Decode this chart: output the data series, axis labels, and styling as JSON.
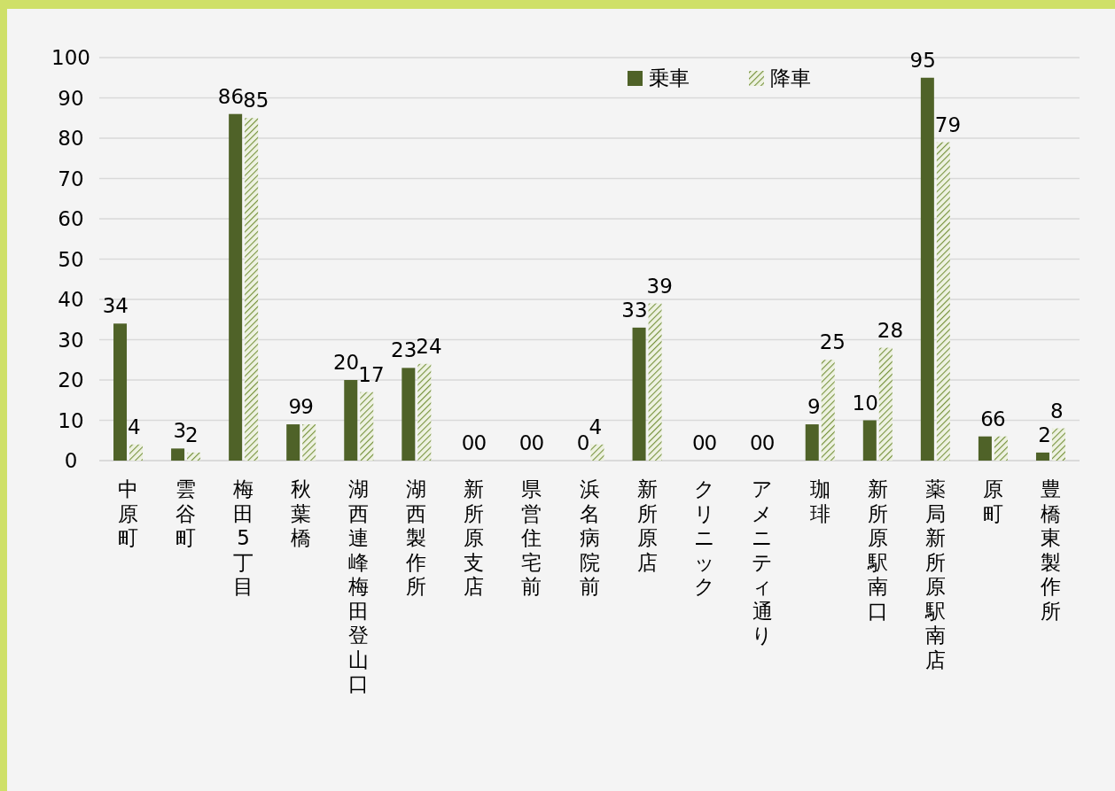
{
  "chart_data": {
    "type": "bar",
    "categories": [
      "中原町",
      "雲谷町",
      "梅田5丁目",
      "秋葉橋",
      "湖西連峰梅田登山口",
      "湖西製作所",
      "新所原支店",
      "県営住宅前",
      "浜名病院前",
      "新所原店",
      "クリニック",
      "アメニティ通り",
      "珈琲",
      "新所原駅南口",
      "薬局新所原駅南店",
      "原町",
      "豊橋東製作所"
    ],
    "series": [
      {
        "name": "乗車",
        "color": "#4f6228",
        "values": [
          34,
          3,
          86,
          9,
          20,
          23,
          0,
          0,
          0,
          33,
          0,
          0,
          9,
          10,
          95,
          6,
          2
        ]
      },
      {
        "name": "降車",
        "color": "#76923c",
        "values": [
          4,
          2,
          85,
          9,
          17,
          24,
          0,
          0,
          4,
          39,
          0,
          0,
          25,
          28,
          79,
          6,
          8
        ]
      }
    ],
    "ylim": [
      0,
      100
    ],
    "yticks": [
      0,
      10,
      20,
      30,
      40,
      50,
      60,
      70,
      80,
      90,
      100
    ],
    "grid": "y",
    "legend": "top",
    "data_labels": true
  }
}
